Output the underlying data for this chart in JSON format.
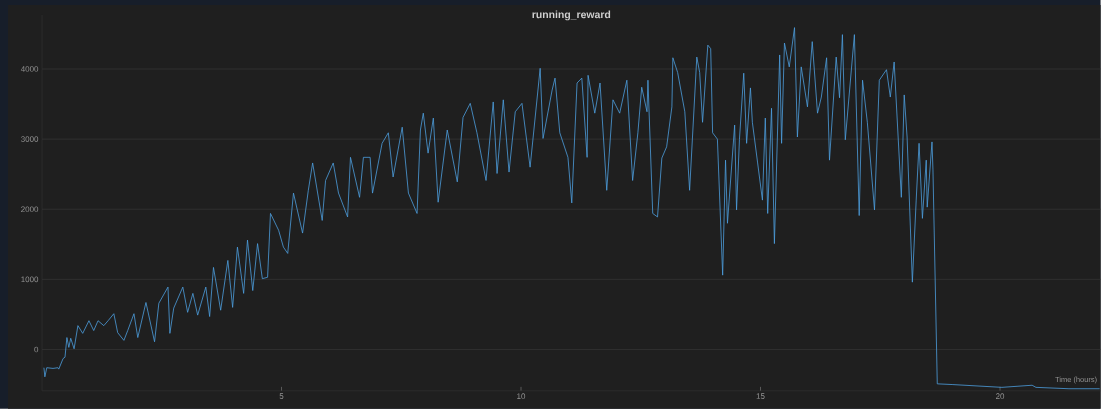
{
  "chart_data": {
    "type": "line",
    "title": "running_reward",
    "xlabel": "Time (hours)",
    "xlim": [
      0,
      22.1
    ],
    "ylim": [
      -590,
      4770
    ],
    "xticks": [
      5,
      10,
      15,
      20
    ],
    "yticks": [
      0,
      1000,
      2000,
      3000,
      4000
    ],
    "grid": "y",
    "x": [
      0.04,
      0.06,
      0.1,
      0.23,
      0.33,
      0.35,
      0.44,
      0.48,
      0.52,
      0.56,
      0.6,
      0.67,
      0.75,
      0.85,
      0.98,
      1.08,
      1.17,
      1.29,
      1.38,
      1.5,
      1.58,
      1.71,
      1.79,
      1.92,
      2.0,
      2.17,
      2.35,
      2.44,
      2.63,
      2.67,
      2.75,
      2.94,
      3.04,
      3.15,
      3.25,
      3.42,
      3.5,
      3.58,
      3.73,
      3.88,
      3.98,
      4.08,
      4.21,
      4.29,
      4.4,
      4.5,
      4.6,
      4.71,
      4.77,
      4.94,
      5.04,
      5.13,
      5.25,
      5.44,
      5.56,
      5.65,
      5.85,
      5.92,
      6.08,
      6.19,
      6.38,
      6.44,
      6.63,
      6.71,
      6.85,
      6.9,
      7.1,
      7.23,
      7.33,
      7.52,
      7.65,
      7.83,
      7.9,
      7.96,
      8.06,
      8.17,
      8.27,
      8.46,
      8.67,
      8.79,
      8.94,
      9.08,
      9.27,
      9.42,
      9.5,
      9.63,
      9.75,
      9.88,
      10.02,
      10.19,
      10.4,
      10.46,
      10.65,
      10.71,
      10.81,
      10.98,
      11.06,
      11.17,
      11.27,
      11.38,
      11.4,
      11.54,
      11.65,
      11.79,
      11.92,
      12.06,
      12.21,
      12.33,
      12.44,
      12.52,
      12.63,
      12.65,
      12.75,
      12.85,
      12.94,
      13.04,
      13.15,
      13.17,
      13.27,
      13.42,
      13.52,
      13.67,
      13.73,
      13.79,
      13.9,
      13.96,
      14.0,
      14.1,
      14.21,
      14.27,
      14.31,
      14.46,
      14.5,
      14.56,
      14.65,
      14.71,
      14.79,
      14.83,
      14.94,
      15.04,
      15.1,
      15.15,
      15.23,
      15.29,
      15.4,
      15.44,
      15.5,
      15.6,
      15.71,
      15.77,
      15.85,
      15.98,
      16.08,
      16.19,
      16.27,
      16.38,
      16.44,
      16.58,
      16.65,
      16.71,
      16.77,
      16.96,
      17.06,
      17.13,
      17.23,
      17.38,
      17.48,
      17.63,
      17.71,
      17.79,
      17.94,
      18.0,
      18.06,
      18.17,
      18.25,
      18.31,
      18.38,
      18.46,
      18.48,
      18.58,
      18.6,
      18.69,
      19.0,
      20.04,
      20.67,
      20.75,
      21.44,
      22.08
    ],
    "series": [
      {
        "color": "#4d9fe0",
        "values": [
          -260,
          -390,
          -260,
          -270,
          -260,
          -280,
          -130,
          -110,
          170,
          30,
          160,
          10,
          340,
          230,
          410,
          270,
          410,
          340,
          410,
          510,
          240,
          130,
          270,
          510,
          170,
          670,
          110,
          660,
          890,
          230,
          590,
          890,
          530,
          800,
          490,
          890,
          470,
          1170,
          560,
          1270,
          600,
          1460,
          800,
          1560,
          840,
          1510,
          1010,
          1030,
          1940,
          1700,
          1460,
          1370,
          2230,
          1660,
          2270,
          2660,
          1840,
          2410,
          2660,
          2230,
          1890,
          2740,
          2170,
          2740,
          2740,
          2230,
          2940,
          3090,
          2460,
          3170,
          2230,
          1940,
          3130,
          3370,
          2800,
          3300,
          2100,
          3130,
          2390,
          3310,
          3510,
          3090,
          2410,
          3530,
          2510,
          3560,
          2530,
          3390,
          3510,
          2600,
          4010,
          3010,
          3700,
          3870,
          3090,
          2740,
          2090,
          3800,
          3870,
          2740,
          3910,
          3370,
          3800,
          2270,
          3560,
          3370,
          3840,
          2410,
          3090,
          3740,
          3390,
          3840,
          1940,
          1890,
          2730,
          2890,
          3460,
          4160,
          3950,
          3390,
          2270,
          4170,
          3950,
          3240,
          4340,
          4290,
          3090,
          3000,
          1060,
          2700,
          1800,
          3200,
          1990,
          2990,
          3940,
          2940,
          3730,
          3240,
          2660,
          2130,
          3300,
          1940,
          3440,
          1510,
          4200,
          2940,
          4370,
          4030,
          4590,
          3030,
          4030,
          3460,
          4390,
          3370,
          3600,
          4160,
          2700,
          4170,
          3590,
          4490,
          2990,
          4490,
          1910,
          3840,
          3240,
          1990,
          3840,
          3990,
          3600,
          4100,
          2170,
          3630,
          3030,
          960,
          2130,
          2940,
          1870,
          2700,
          2030,
          2960,
          2560,
          -490,
          -500,
          -540,
          -510,
          -540,
          -560,
          -560
        ]
      }
    ]
  }
}
